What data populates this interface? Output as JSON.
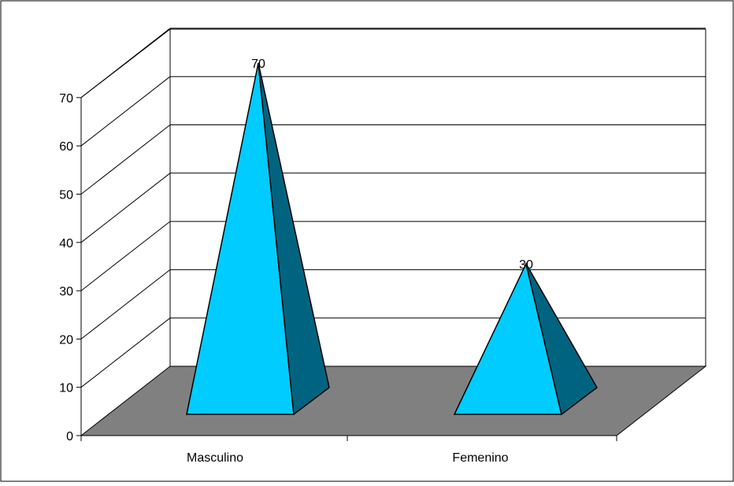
{
  "chart_data": {
    "type": "bar",
    "style": "3d-pyramid",
    "categories": [
      "Masculino",
      "Femenino"
    ],
    "values": [
      70,
      30
    ],
    "data_labels": [
      "70",
      "30"
    ],
    "y_ticks": [
      "0",
      "10",
      "20",
      "30",
      "40",
      "50",
      "60",
      "70"
    ],
    "ylim": [
      0,
      70
    ],
    "grid": true,
    "legend": "none",
    "colors": {
      "pyramid_front": "#00ccff",
      "pyramid_side": "#006480",
      "floor": "#808080",
      "gridline": "#000000",
      "frame": "#000000"
    }
  }
}
